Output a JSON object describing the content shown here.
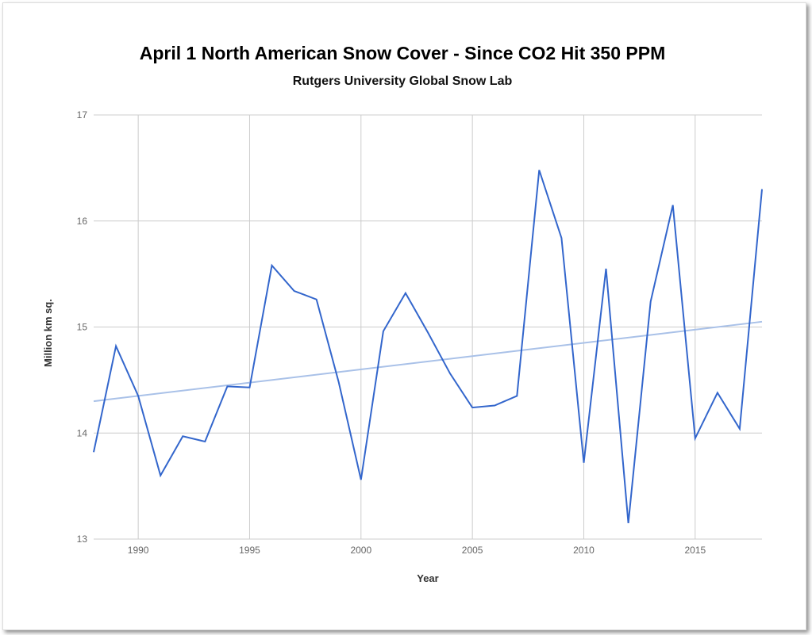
{
  "chart_data": {
    "type": "line",
    "title": "April 1 North American Snow Cover - Since CO2 Hit 350 PPM",
    "subtitle": "Rutgers University Global Snow Lab",
    "xlabel": "Year",
    "ylabel": "Million km sq.",
    "xlim": [
      1988,
      2018
    ],
    "ylim": [
      13,
      17
    ],
    "x_ticks": [
      1990,
      1995,
      2000,
      2005,
      2010,
      2015
    ],
    "y_ticks": [
      13,
      14,
      15,
      16,
      17
    ],
    "grid": true,
    "legend": "none",
    "colors": {
      "series": "#3366cc",
      "trend": "#a9c1e8",
      "grid": "#cccccc"
    },
    "series": [
      {
        "x": [
          1988,
          1989,
          1990,
          1991,
          1992,
          1993,
          1994,
          1995,
          1996,
          1997,
          1998,
          1999,
          2000,
          2001,
          2002,
          2003,
          2004,
          2005,
          2006,
          2007,
          2008,
          2009,
          2010,
          2011,
          2012,
          2013,
          2014,
          2015,
          2016,
          2017,
          2018
        ],
        "values": [
          13.82,
          14.82,
          14.35,
          13.6,
          13.97,
          13.92,
          14.44,
          14.43,
          15.58,
          15.34,
          15.26,
          14.48,
          13.56,
          14.96,
          15.32,
          14.95,
          14.56,
          14.24,
          14.26,
          14.35,
          16.48,
          15.84,
          13.72,
          15.55,
          13.15,
          15.24,
          16.15,
          13.95,
          14.38,
          14.04,
          16.3
        ]
      }
    ],
    "trendline": {
      "x": [
        1988,
        2018
      ],
      "values": [
        14.3,
        15.05
      ]
    }
  }
}
